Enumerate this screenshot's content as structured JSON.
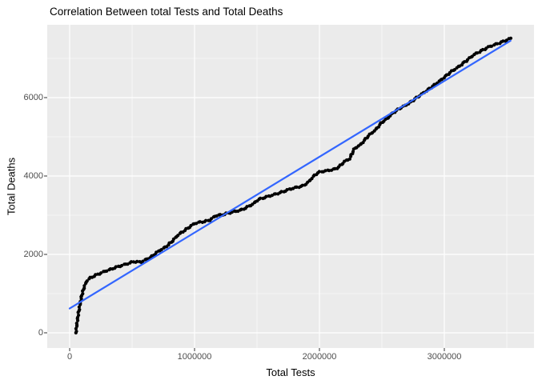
{
  "figure": {
    "title": "Correlation Between total Tests and Total Deaths"
  },
  "chart_data": {
    "type": "scatter",
    "title": "Correlation Between total Tests and Total Deaths",
    "xlabel": "Total Tests",
    "ylabel": "Total Deaths",
    "xlim": [
      -180000,
      3720000
    ],
    "ylim": [
      -390,
      7860
    ],
    "grid": "major and minor, white on gray panel",
    "legend": "none",
    "x_ticks": {
      "values": [
        0,
        1000000,
        2000000,
        3000000
      ],
      "labels": [
        "0",
        "1000000",
        "2000000",
        "3000000"
      ]
    },
    "x_minor_ticks": [
      500000,
      1500000,
      2500000,
      3500000
    ],
    "y_ticks": {
      "values": [
        0,
        2000,
        4000,
        6000
      ],
      "labels": [
        "0",
        "2000",
        "4000",
        "6000"
      ]
    },
    "y_minor_ticks": [
      1000,
      3000,
      5000,
      7000
    ],
    "colors": {
      "panel_background": "#EBEBEB",
      "grid": "#FFFFFF",
      "points": "#000000",
      "trend_line": "#3366FF",
      "tick_text": "#4D4D4D",
      "tick_mark": "#333333",
      "title_text": "#000000"
    },
    "trend_line": {
      "type": "linear_fit",
      "points": [
        [
          0,
          620
        ],
        [
          3530000,
          7450
        ]
      ]
    },
    "points": [
      [
        50000,
        0
      ],
      [
        53000,
        80
      ],
      [
        56000,
        160
      ],
      [
        59000,
        240
      ],
      [
        62000,
        320
      ],
      [
        66000,
        410
      ],
      [
        70000,
        490
      ],
      [
        74000,
        560
      ],
      [
        78000,
        630
      ],
      [
        82000,
        700
      ],
      [
        86000,
        770
      ],
      [
        90000,
        850
      ],
      [
        95000,
        930
      ],
      [
        100000,
        990
      ],
      [
        105000,
        1040
      ],
      [
        110000,
        1090
      ],
      [
        116000,
        1160
      ],
      [
        123000,
        1220
      ],
      [
        130000,
        1280
      ],
      [
        140000,
        1330
      ],
      [
        155000,
        1380
      ],
      [
        170000,
        1410
      ],
      [
        190000,
        1440
      ],
      [
        210000,
        1470
      ],
      [
        240000,
        1510
      ],
      [
        270000,
        1550
      ],
      [
        300000,
        1590
      ],
      [
        330000,
        1620
      ],
      [
        360000,
        1660
      ],
      [
        390000,
        1690
      ],
      [
        420000,
        1720
      ],
      [
        450000,
        1750
      ],
      [
        480000,
        1780
      ],
      [
        510000,
        1815
      ],
      [
        540000,
        1810
      ],
      [
        570000,
        1800
      ],
      [
        600000,
        1850
      ],
      [
        630000,
        1900
      ],
      [
        660000,
        1950
      ],
      [
        690000,
        2030
      ],
      [
        720000,
        2100
      ],
      [
        750000,
        2150
      ],
      [
        780000,
        2220
      ],
      [
        810000,
        2300
      ],
      [
        840000,
        2400
      ],
      [
        870000,
        2500
      ],
      [
        900000,
        2570
      ],
      [
        930000,
        2630
      ],
      [
        960000,
        2700
      ],
      [
        1000000,
        2790
      ],
      [
        1040000,
        2820
      ],
      [
        1080000,
        2840
      ],
      [
        1120000,
        2870
      ],
      [
        1170000,
        2990
      ],
      [
        1220000,
        3010
      ],
      [
        1280000,
        3060
      ],
      [
        1330000,
        3100
      ],
      [
        1380000,
        3140
      ],
      [
        1430000,
        3220
      ],
      [
        1470000,
        3290
      ],
      [
        1510000,
        3400
      ],
      [
        1540000,
        3430
      ],
      [
        1580000,
        3470
      ],
      [
        1620000,
        3510
      ],
      [
        1660000,
        3550
      ],
      [
        1700000,
        3590
      ],
      [
        1750000,
        3650
      ],
      [
        1790000,
        3690
      ],
      [
        1830000,
        3720
      ],
      [
        1870000,
        3750
      ],
      [
        1910000,
        3840
      ],
      [
        1955000,
        4000
      ],
      [
        1990000,
        4090
      ],
      [
        2030000,
        4120
      ],
      [
        2070000,
        4140
      ],
      [
        2100000,
        4160
      ],
      [
        2130000,
        4180
      ],
      [
        2170000,
        4270
      ],
      [
        2200000,
        4370
      ],
      [
        2240000,
        4430
      ],
      [
        2280000,
        4700
      ],
      [
        2330000,
        4800
      ],
      [
        2390000,
        5020
      ],
      [
        2450000,
        5180
      ],
      [
        2500000,
        5370
      ],
      [
        2550000,
        5480
      ],
      [
        2580000,
        5590
      ],
      [
        2640000,
        5720
      ],
      [
        2710000,
        5840
      ],
      [
        2780000,
        6000
      ],
      [
        2860000,
        6180
      ],
      [
        2950000,
        6390
      ],
      [
        3050000,
        6650
      ],
      [
        3120000,
        6800
      ],
      [
        3180000,
        6950
      ],
      [
        3240000,
        7100
      ],
      [
        3300000,
        7200
      ],
      [
        3360000,
        7300
      ],
      [
        3420000,
        7370
      ],
      [
        3480000,
        7440
      ],
      [
        3530000,
        7510
      ]
    ]
  }
}
